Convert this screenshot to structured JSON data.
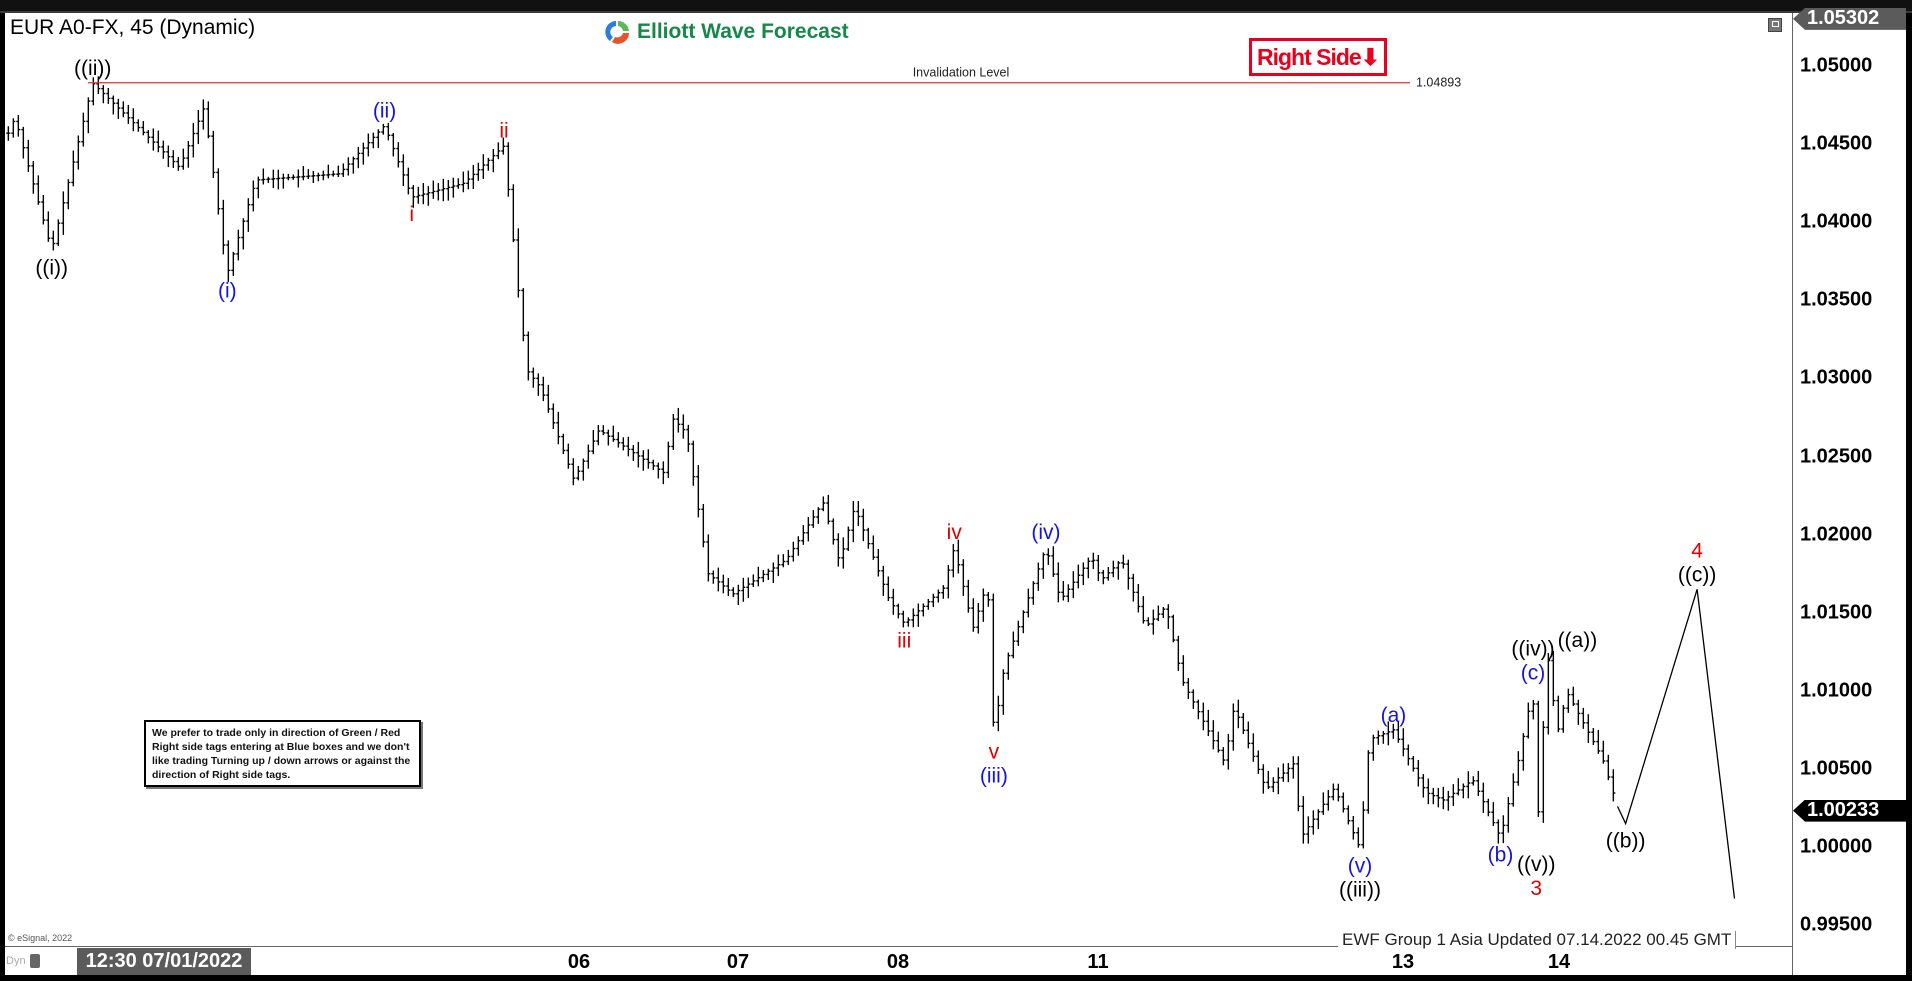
{
  "header": {
    "title": "EUR A0-FX, 45 (Dynamic)",
    "logo_text": "Elliott Wave Forecast",
    "right_side_label": "Right Side",
    "right_side_arrow": "⬇"
  },
  "notice": "We prefer to trade only in direction of Green / Red Right side tags entering at Blue boxes and we don't like trading Turning up / down arrows or against the direction of Right side tags.",
  "footer": {
    "copyright": "© eSignal, 2022",
    "updated": "EWF Group 1 Asia Updated 07.14.2022 00.45 GMT",
    "dyn_label": "Dyn",
    "cursor_time": "12:30 07/01/2022"
  },
  "colors": {
    "wave_red": "#e00000",
    "wave_blue": "#1414e0",
    "wave_black": "#000000",
    "invalidation": "#e53030",
    "right_side": "#e8001c",
    "logo_green": "#17874a"
  },
  "chart_data": {
    "type": "ohlc-bar",
    "symbol": "EUR A0-FX",
    "interval": "45",
    "ylim": [
      0.994,
      1.0534
    ],
    "yticks": [
      "1.05000",
      "1.04500",
      "1.04000",
      "1.03500",
      "1.03000",
      "1.02500",
      "1.02000",
      "1.01500",
      "1.01000",
      "1.00500",
      "1.00000",
      "0.99500"
    ],
    "xticks": [
      "06",
      "07",
      "08",
      "11",
      "13",
      "14"
    ],
    "price_tags": {
      "high": "1.05302",
      "last": "1.00233"
    },
    "invalidation": {
      "label": "Invalidation Level",
      "value": "1.04893"
    },
    "price_path": [
      {
        "t": "06/30 14:00",
        "p": 1.0457
      },
      {
        "t": "06/30 15:00",
        "p": 1.0467
      },
      {
        "t": "06/30 20:30",
        "p": 1.0382
      },
      {
        "t": "07/01 02:30",
        "p": 1.0489
      },
      {
        "t": "07/01 14:45",
        "p": 1.0435
      },
      {
        "t": "07/01 18:15",
        "p": 1.0474
      },
      {
        "t": "07/01 21:30",
        "p": 1.0367
      },
      {
        "t": "07/04 01:30",
        "p": 1.0427
      },
      {
        "t": "07/04 13:00",
        "p": 1.0431
      },
      {
        "t": "07/04 19:15",
        "p": 1.0462
      },
      {
        "t": "07/04 23:00",
        "p": 1.0416
      },
      {
        "t": "07/05 06:45",
        "p": 1.0425
      },
      {
        "t": "07/05 12:45",
        "p": 1.0449
      },
      {
        "t": "07/05 15:00",
        "p": 1.0352
      },
      {
        "t": "07/05 16:15",
        "p": 1.0305
      },
      {
        "t": "07/05 18:15",
        "p": 1.0294
      },
      {
        "t": "07/05 23:15",
        "p": 1.0235
      },
      {
        "t": "07/06 03:00",
        "p": 1.0267
      },
      {
        "t": "07/06 13:00",
        "p": 1.0239
      },
      {
        "t": "07/06 14:00",
        "p": 1.0275
      },
      {
        "t": "07/06 16:15",
        "p": 1.0265
      },
      {
        "t": "07/06 19:30",
        "p": 1.0175
      },
      {
        "t": "07/06 23:15",
        "p": 1.0162
      },
      {
        "t": "07/07 07:15",
        "p": 1.0184
      },
      {
        "t": "07/07 12:45",
        "p": 1.0221
      },
      {
        "t": "07/07 15:15",
        "p": 1.0182
      },
      {
        "t": "07/07 17:30",
        "p": 1.0218
      },
      {
        "t": "07/07 22:30",
        "p": 1.016
      },
      {
        "t": "07/08 00:45",
        "p": 1.0143
      },
      {
        "t": "07/08 05:30",
        "p": 1.0166
      },
      {
        "t": "07/08 06:45",
        "p": 1.0192
      },
      {
        "t": "07/08 09:00",
        "p": 1.014
      },
      {
        "t": "07/08 10:45",
        "p": 1.017
      },
      {
        "t": "07/08 11:30",
        "p": 1.0072
      },
      {
        "t": "07/08 12:45",
        "p": 1.0115
      },
      {
        "t": "07/08 17:45",
        "p": 1.0192
      },
      {
        "t": "07/08 19:30",
        "p": 1.0158
      },
      {
        "t": "07/08 23:15",
        "p": 1.0186
      },
      {
        "t": "07/11 00:30",
        "p": 1.0171
      },
      {
        "t": "07/11 03:45",
        "p": 1.0184
      },
      {
        "t": "07/11 07:30",
        "p": 1.0141
      },
      {
        "t": "07/11 10:45",
        "p": 1.0154
      },
      {
        "t": "07/11 13:15",
        "p": 1.0107
      },
      {
        "t": "07/11 20:00",
        "p": 1.0054
      },
      {
        "t": "07/11 21:30",
        "p": 1.009
      },
      {
        "t": "07/12 02:30",
        "p": 1.0037
      },
      {
        "t": "07/12 07:00",
        "p": 1.0054
      },
      {
        "t": "07/12 08:00",
        "p": 1.0006
      },
      {
        "t": "07/12 13:15",
        "p": 1.0038
      },
      {
        "t": "07/12 17:15",
        "p": 0.9999
      },
      {
        "t": "07/12 18:45",
        "p": 1.0069
      },
      {
        "t": "07/12 22:30",
        "p": 1.0075
      },
      {
        "t": "07/13 03:30",
        "p": 1.0035
      },
      {
        "t": "07/13 06:15",
        "p": 1.003
      },
      {
        "t": "07/13 10:45",
        "p": 1.0043
      },
      {
        "t": "07/13 15:00",
        "p": 1.0006
      },
      {
        "t": "07/13 18:00",
        "p": 1.006
      },
      {
        "t": "07/13 20:00",
        "p": 1.0102
      },
      {
        "t": "07/13 20:30",
        "p": 1.0
      },
      {
        "t": "07/13 22:15",
        "p": 1.0123
      },
      {
        "t": "07/13 23:45",
        "p": 1.0073
      },
      {
        "t": "07/14 01:15",
        "p": 1.0099
      },
      {
        "t": "07/14 06:45",
        "p": 1.0056
      },
      {
        "t": "07/14 09:00",
        "p": 1.0026
      }
    ],
    "projection": [
      {
        "t": "07/14 09:00",
        "p": 1.0026
      },
      {
        "t": "07/14 10:15",
        "p": 1.0015
      },
      {
        "t": "07/14 21:15",
        "p": 1.0165
      },
      {
        "t": "07/15 03:00",
        "p": 0.9967
      }
    ],
    "wave_labels": [
      {
        "t": "07/01 02:30",
        "p": 1.0489,
        "side": "above",
        "stack": [
          {
            "text": "((ii))",
            "color": "black"
          }
        ]
      },
      {
        "t": "06/30 20:30",
        "p": 1.0382,
        "side": "below",
        "stack": [
          {
            "text": "((i))",
            "color": "black"
          }
        ]
      },
      {
        "t": "07/01 21:30",
        "p": 1.0367,
        "side": "below",
        "stack": [
          {
            "text": "(i)",
            "color": "blue"
          }
        ]
      },
      {
        "t": "07/04 19:15",
        "p": 1.0462,
        "side": "above",
        "stack": [
          {
            "text": "(ii)",
            "color": "blue"
          }
        ]
      },
      {
        "t": "07/04 23:00",
        "p": 1.0416,
        "side": "below",
        "stack": [
          {
            "text": "i",
            "color": "red"
          }
        ]
      },
      {
        "t": "07/05 12:45",
        "p": 1.0449,
        "side": "above",
        "stack": [
          {
            "text": "ii",
            "color": "red"
          }
        ]
      },
      {
        "t": "07/08 00:45",
        "p": 1.0143,
        "side": "below",
        "stack": [
          {
            "text": "iii",
            "color": "red"
          }
        ]
      },
      {
        "t": "07/08 06:45",
        "p": 1.0192,
        "side": "above",
        "stack": [
          {
            "text": "iv",
            "color": "red"
          }
        ]
      },
      {
        "t": "07/08 11:30",
        "p": 1.0072,
        "side": "below",
        "stack": [
          {
            "text": "v",
            "color": "red"
          },
          {
            "text": "(iii)",
            "color": "blue"
          }
        ]
      },
      {
        "t": "07/08 17:45",
        "p": 1.0192,
        "side": "above",
        "stack": [
          {
            "text": "(iv)",
            "color": "blue"
          }
        ]
      },
      {
        "t": "07/12 17:15",
        "p": 0.9999,
        "side": "below",
        "stack": [
          {
            "text": "(v)",
            "color": "blue"
          },
          {
            "text": "((iii))",
            "color": "black"
          }
        ]
      },
      {
        "t": "07/12 22:30",
        "p": 1.0075,
        "side": "above",
        "stack": [
          {
            "text": "(a)",
            "color": "blue"
          }
        ]
      },
      {
        "t": "07/13 15:00",
        "p": 1.0006,
        "side": "below",
        "stack": [
          {
            "text": "(b)",
            "color": "blue"
          }
        ]
      },
      {
        "t": "07/13 20:00",
        "p": 1.0102,
        "side": "above",
        "stack": [
          {
            "text": "(c)",
            "color": "blue"
          },
          {
            "text": "((iv))",
            "color": "black"
          }
        ]
      },
      {
        "t": "07/13 20:30",
        "p": 1.0,
        "side": "below",
        "stack": [
          {
            "text": "((v))",
            "color": "black"
          },
          {
            "text": "3",
            "color": "red"
          }
        ]
      },
      {
        "t": "07/13 22:15",
        "p": 1.0123,
        "side": "above",
        "stack": [
          {
            "text": "((a))",
            "color": "black"
          }
        ]
      },
      {
        "t": "07/14 10:15",
        "p": 1.0015,
        "side": "below",
        "stack": [
          {
            "text": "((b))",
            "color": "black"
          }
        ]
      },
      {
        "t": "07/14 21:15",
        "p": 1.0165,
        "side": "above",
        "stack": [
          {
            "text": "((c))",
            "color": "black"
          },
          {
            "text": "4",
            "color": "red"
          }
        ]
      }
    ]
  }
}
